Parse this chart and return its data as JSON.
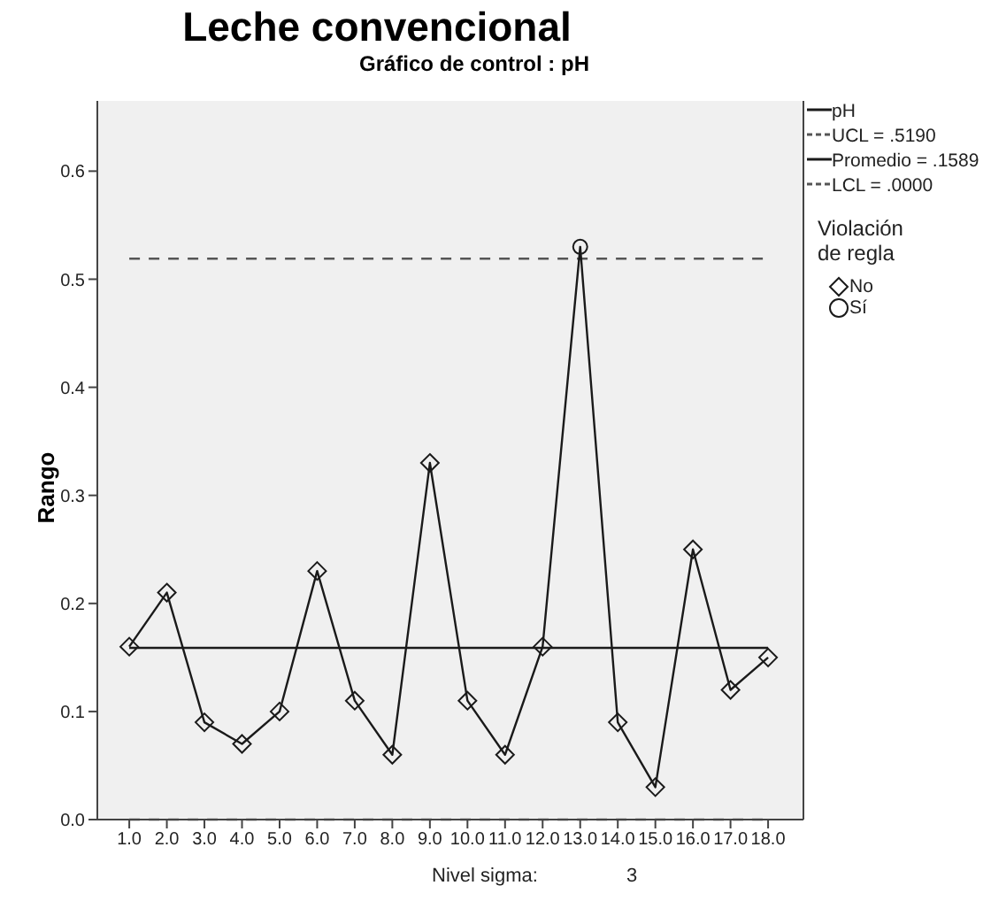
{
  "chart_data": {
    "type": "line",
    "title": "Leche convencional",
    "subtitle": "Gráfico de control : pH",
    "ylabel": "Rango",
    "legend_title": "Violación de regla",
    "legend": "right",
    "annotations": [
      "Nivel sigma:",
      "3"
    ],
    "categories": [
      "1.0",
      "2.0",
      "3.0",
      "4.0",
      "5.0",
      "6.0",
      "7.0",
      "8.0",
      "9.0",
      "10.0",
      "11.0",
      "12.0",
      "13.0",
      "14.0",
      "15.0",
      "16.0",
      "17.0",
      "18.0"
    ],
    "series": [
      {
        "name": "pH",
        "color": "#1a1a1a",
        "marker": "none",
        "line_style": "solid",
        "values": [
          0.16,
          0.21,
          0.09,
          0.07,
          0.1,
          0.23,
          0.11,
          0.06,
          0.33,
          0.11,
          0.06,
          0.16,
          0.53,
          0.09,
          0.03,
          0.25,
          0.12,
          0.15
        ]
      },
      {
        "name": "No",
        "type": "scatter",
        "color": "#1a1a1a",
        "marker": "diamond",
        "values": [
          0.16,
          0.21,
          0.09,
          0.07,
          0.1,
          0.23,
          0.11,
          0.06,
          0.33,
          0.11,
          0.06,
          0.16,
          null,
          0.09,
          0.03,
          0.25,
          0.12,
          0.15
        ]
      },
      {
        "name": "Sí",
        "type": "scatter",
        "color": "#1a1a1a",
        "marker": "circle",
        "values": [
          null,
          null,
          null,
          null,
          null,
          null,
          null,
          null,
          null,
          null,
          null,
          null,
          0.53,
          null,
          null,
          null,
          null,
          null
        ]
      }
    ],
    "ylim": [
      0,
      0.665
    ],
    "yticks": [
      {
        "value": 0,
        "label": "0.0"
      },
      0.1,
      0.2,
      0.3,
      0.4,
      0.5,
      0.6
    ],
    "ref_lines": [
      {
        "axis": "y",
        "value": 0.519,
        "label": "UCL = .5190",
        "color": "#555555",
        "line_style": "dashed"
      },
      {
        "axis": "y",
        "value": 0.1589,
        "label": "Promedio = .1589",
        "color": "#1a1a1a",
        "line_style": "solid"
      },
      {
        "axis": "y",
        "value": 0,
        "label": "LCL = .0000",
        "color": "#555555",
        "line_style": "dashed"
      }
    ]
  }
}
